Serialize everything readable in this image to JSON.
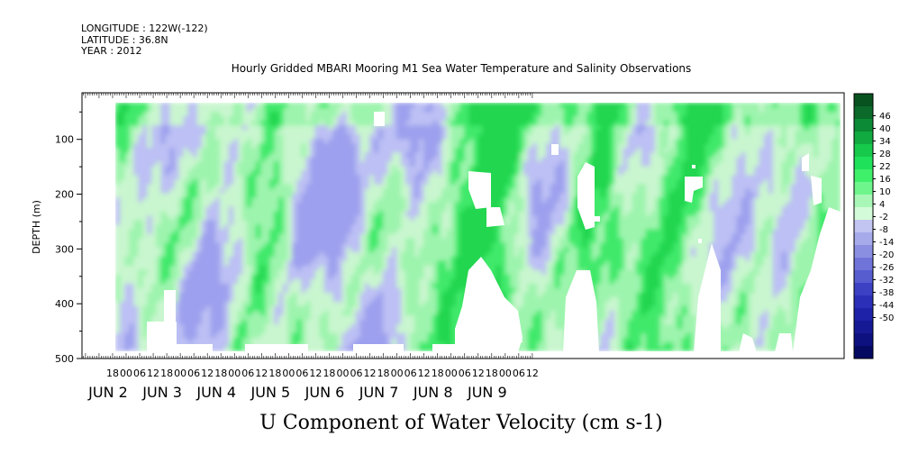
{
  "meta": {
    "longitude": "LONGITUDE : 122W(-122)",
    "latitude": "LATITUDE : 36.8N",
    "year": "YEAR : 2012"
  },
  "chart_data": {
    "type": "heatmap",
    "title": "Hourly Gridded MBARI Mooring M1 Sea Water Temperature and Salinity Observations",
    "variable_title": "U Component of Water Velocity (cm s-1)",
    "ylabel": "DEPTH (m)",
    "y_range": [
      500,
      15
    ],
    "y_axis_inverted": true,
    "y_ticks": [
      100,
      200,
      300,
      400,
      500
    ],
    "time_range_hours": [
      "JUN 1 12:00",
      "JUN 9 15:00"
    ],
    "hour_ticks": [
      "18",
      "00",
      "06",
      "12",
      "18",
      "00",
      "06",
      "12",
      "18",
      "00",
      "06",
      "12",
      "18",
      "00",
      "06",
      "12",
      "18",
      "00",
      "06",
      "12",
      "18",
      "00",
      "06",
      "12",
      "18",
      "00",
      "06",
      "12",
      "18",
      "00",
      "06",
      "12"
    ],
    "day_labels": [
      "JUN  2",
      "JUN  3",
      "JUN  4",
      "JUN  5",
      "JUN  6",
      "JUN  7",
      "JUN  8",
      "JUN  9"
    ],
    "colorbar_levels": [
      "46",
      "40",
      "34",
      "28",
      "22",
      "16",
      "10",
      "4",
      "-2",
      "-8",
      "-14",
      "-20",
      "-26",
      "-32",
      "-38",
      "-44",
      "-50"
    ],
    "colorbar_colors": [
      "#07521f",
      "#0b6a2a",
      "#0c8a35",
      "#11aa40",
      "#17c94b",
      "#1fe25a",
      "#3ff06a",
      "#6ef58c",
      "#a9f7b7",
      "#d4fbd9",
      "#c2c4f1",
      "#a7aaea",
      "#8b8fe2",
      "#7074d9",
      "#575ccf",
      "#3c41c4",
      "#2b2fb7",
      "#1e22a8",
      "#151994",
      "#0d107f",
      "#050962"
    ],
    "contour_fill_levels_cm_s": [
      -8,
      -2,
      4,
      10,
      16,
      22
    ],
    "contour_fill_colors": [
      "#9da0ee",
      "#bcc0f4",
      "#c9f6cf",
      "#9df4ad",
      "#3fe96a",
      "#22d64f"
    ],
    "depth_bottom_m": 485,
    "grid": false
  }
}
